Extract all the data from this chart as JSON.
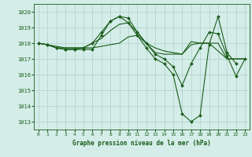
{
  "title": "Graphe pression niveau de la mer (hPa)",
  "background_color": "#d4ede8",
  "grid_color": "#b0cfc9",
  "line_color": "#1a5c1a",
  "marker_color": "#1a5c1a",
  "ylim": [
    1012.5,
    1020.5
  ],
  "xlim": [
    -0.5,
    23.5
  ],
  "yticks": [
    1013,
    1014,
    1015,
    1016,
    1017,
    1018,
    1019,
    1020
  ],
  "xticks": [
    0,
    1,
    2,
    3,
    4,
    5,
    6,
    7,
    8,
    9,
    10,
    11,
    12,
    13,
    14,
    15,
    16,
    17,
    18,
    19,
    20,
    21,
    22,
    23
  ],
  "series": [
    {
      "x": [
        0,
        1,
        2,
        3,
        4,
        5,
        6,
        7,
        8,
        9,
        10,
        11,
        12,
        13,
        14,
        15,
        16,
        17,
        18,
        19,
        20,
        21,
        22
      ],
      "y": [
        1018.0,
        1017.9,
        1017.7,
        1017.6,
        1017.6,
        1017.6,
        1017.6,
        1018.5,
        1019.4,
        1019.7,
        1019.3,
        1018.5,
        1017.7,
        1017.0,
        1016.7,
        1016.0,
        1013.5,
        1013.0,
        1013.4,
        1017.9,
        1019.7,
        1017.4,
        1016.7
      ],
      "has_markers": true
    },
    {
      "x": [
        0,
        1,
        2,
        3,
        4,
        5,
        6,
        7,
        8,
        9,
        10,
        11,
        12,
        13,
        14,
        15,
        16,
        17,
        18,
        19,
        20,
        21,
        22,
        23
      ],
      "y": [
        1018.0,
        1017.9,
        1017.7,
        1017.7,
        1017.7,
        1017.7,
        1017.7,
        1017.8,
        1017.9,
        1018.0,
        1018.4,
        1018.5,
        1018.0,
        1017.7,
        1017.5,
        1017.4,
        1017.3,
        1017.9,
        1018.0,
        1018.0,
        1018.0,
        1017.0,
        1017.0,
        1017.0
      ],
      "has_markers": false
    },
    {
      "x": [
        0,
        1,
        2,
        3,
        4,
        5,
        6,
        7,
        8,
        9,
        10,
        11,
        12,
        13,
        14,
        15,
        16,
        17,
        18,
        19,
        20,
        21,
        22,
        23
      ],
      "y": [
        1018.0,
        1017.9,
        1017.8,
        1017.7,
        1017.7,
        1017.7,
        1018.0,
        1018.3,
        1018.8,
        1019.2,
        1019.3,
        1018.7,
        1018.0,
        1017.4,
        1017.3,
        1017.3,
        1017.3,
        1018.1,
        1018.0,
        1018.0,
        1017.5,
        1017.0,
        1017.0,
        1017.0
      ],
      "has_markers": false
    },
    {
      "x": [
        0,
        1,
        2,
        3,
        4,
        5,
        6,
        7,
        8,
        9,
        10,
        11,
        12,
        13,
        14,
        15,
        16,
        17,
        18,
        19,
        20,
        21,
        22,
        23
      ],
      "y": [
        1018.0,
        1017.9,
        1017.7,
        1017.6,
        1017.6,
        1017.7,
        1018.0,
        1018.7,
        1019.4,
        1019.7,
        1019.6,
        1018.7,
        1018.0,
        1017.3,
        1017.0,
        1016.5,
        1015.3,
        1016.7,
        1017.7,
        1018.7,
        1018.6,
        1017.2,
        1015.9,
        1017.0
      ],
      "has_markers": true
    }
  ]
}
